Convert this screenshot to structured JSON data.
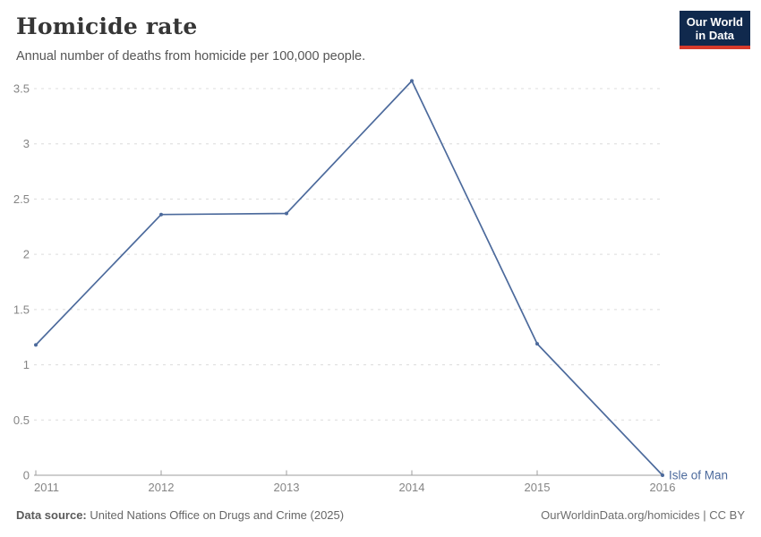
{
  "header": {
    "title": "Homicide rate",
    "subtitle": "Annual number of deaths from homicide per 100,000 people.",
    "logo": {
      "line1": "Our World",
      "line2": "in Data"
    }
  },
  "chart_data": {
    "type": "line",
    "title": "Homicide rate",
    "subtitle": "Annual number of deaths from homicide per 100,000 people.",
    "series": [
      {
        "name": "Isle of Man",
        "color": "#4C6A9C",
        "x": [
          2011,
          2012,
          2013,
          2014,
          2015,
          2016
        ],
        "values": [
          1.18,
          2.36,
          2.37,
          3.57,
          1.19,
          0
        ]
      }
    ],
    "x_tick_labels": [
      "2011",
      "2012",
      "2013",
      "2014",
      "2015",
      "2016"
    ],
    "y_ticks": [
      0,
      0.5,
      1,
      1.5,
      2,
      2.5,
      3,
      3.5
    ],
    "xlim": [
      2011,
      2016
    ],
    "ylim": [
      0,
      3.5
    ],
    "grid": "horizontal-dashed",
    "legend_position": "end-of-line-label",
    "end_label": "Isle of Man"
  },
  "footer": {
    "source_label": "Data source:",
    "source_value": " United Nations Office on Drugs and Crime (2025)",
    "attribution": "OurWorldinData.org/homicides | CC BY"
  },
  "colors": {
    "series_line": "#4C6A9C",
    "logo_navy": "#10294d",
    "logo_red": "#d63a2b",
    "gridline": "#dcdcdc",
    "axis": "#9e9e9e",
    "tick_text": "#858585"
  }
}
